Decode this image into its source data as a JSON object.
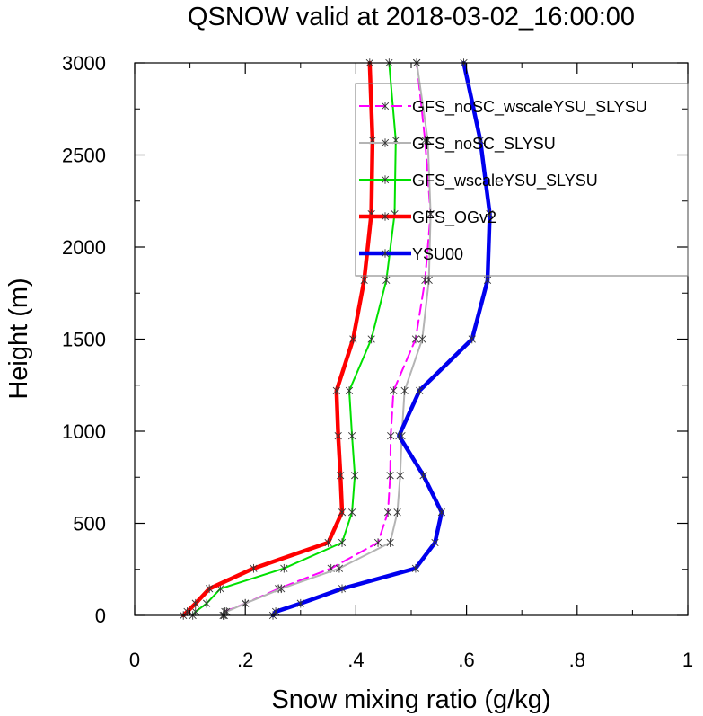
{
  "chart_data": {
    "type": "line",
    "title": "QSNOW valid at 2018-03-02_16:00:00",
    "xlabel": "Snow mixing ratio (g/kg)",
    "ylabel": "Height (m)",
    "xlim": [
      0,
      1
    ],
    "ylim": [
      0,
      3000
    ],
    "xticks": [
      0,
      0.2,
      0.4,
      0.6,
      0.8,
      1
    ],
    "xtick_labels": [
      "0",
      ".2",
      ".4",
      ".6",
      ".8",
      "1"
    ],
    "yticks": [
      0,
      500,
      1000,
      1500,
      2000,
      2500,
      3000
    ],
    "ytick_labels": [
      "0",
      "500",
      "1000",
      "1500",
      "2000",
      "2500",
      "3000"
    ],
    "grid": false,
    "legend_position": "top-right",
    "heights": [
      3000,
      2580,
      2180,
      1820,
      1500,
      1220,
      975,
      760,
      560,
      395,
      255,
      145,
      65,
      20,
      0
    ],
    "series": [
      {
        "name": "GFS_noSC_wscaleYSU_SLYSU",
        "color": "#ff00ff",
        "dash": "dashed",
        "width": 2,
        "values": [
          0.51,
          0.525,
          0.535,
          0.525,
          0.508,
          0.468,
          0.463,
          0.462,
          0.458,
          0.44,
          0.355,
          0.26,
          0.2,
          0.163,
          0.16
        ]
      },
      {
        "name": "GFS_noSC_SLYSU",
        "color": "#b4b4b4",
        "dash": "solid",
        "width": 2,
        "values": [
          0.51,
          0.53,
          0.535,
          0.532,
          0.52,
          0.488,
          0.483,
          0.48,
          0.475,
          0.462,
          0.37,
          0.265,
          0.2,
          0.166,
          0.162
        ]
      },
      {
        "name": "GFS_wscaleYSU_SLYSU",
        "color": "#00e000",
        "dash": "solid",
        "width": 2,
        "values": [
          0.46,
          0.472,
          0.47,
          0.455,
          0.428,
          0.388,
          0.393,
          0.398,
          0.393,
          0.375,
          0.27,
          0.155,
          0.13,
          0.11,
          0.105
        ]
      },
      {
        "name": "GFS_OGv2",
        "color": "#ff0000",
        "dash": "solid",
        "width": 4.5,
        "values": [
          0.425,
          0.43,
          0.428,
          0.415,
          0.395,
          0.365,
          0.368,
          0.372,
          0.375,
          0.35,
          0.215,
          0.135,
          0.11,
          0.095,
          0.088
        ]
      },
      {
        "name": "YSU00",
        "color": "#0000ee",
        "dash": "solid",
        "width": 4.5,
        "values": [
          0.595,
          0.625,
          0.642,
          0.638,
          0.61,
          0.515,
          0.478,
          0.522,
          0.555,
          0.543,
          0.508,
          0.375,
          0.3,
          0.255,
          0.25
        ]
      }
    ]
  }
}
